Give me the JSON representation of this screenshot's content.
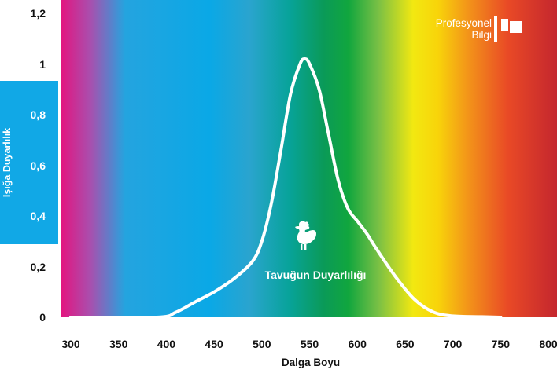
{
  "chart_data": {
    "type": "line",
    "title": "",
    "xlabel": "Dalga Boyu",
    "ylabel": "Işığa Duyarlılık",
    "xlim": [
      300,
      800
    ],
    "ylim": [
      0,
      1.2
    ],
    "x_ticks": [
      "300",
      "350",
      "400",
      "450",
      "500",
      "550",
      "600",
      "650",
      "700",
      "750",
      "800"
    ],
    "y_ticks": [
      "0",
      "0,2",
      "0,4",
      "0,6",
      "0,8",
      "1",
      "1,2"
    ],
    "grid": false,
    "series": [
      {
        "name": "Tavuğun Duyarlılığı",
        "color": "#ffffff",
        "x": [
          300,
          390,
          410,
          430,
          450,
          470,
          490,
          500,
          510,
          520,
          530,
          540,
          545,
          550,
          560,
          570,
          580,
          590,
          600,
          610,
          620,
          640,
          660,
          680,
          700,
          730,
          750
        ],
        "y": [
          0,
          0,
          0.02,
          0.06,
          0.1,
          0.15,
          0.22,
          0.3,
          0.45,
          0.66,
          0.88,
          1.0,
          1.02,
          1.0,
          0.9,
          0.72,
          0.54,
          0.43,
          0.38,
          0.33,
          0.27,
          0.16,
          0.07,
          0.02,
          0.005,
          0.002,
          0
        ]
      }
    ],
    "annotations": [
      "Tavuğun Duyarlılığı"
    ],
    "background": "visible light spectrum gradient (magenta to red)"
  },
  "brand": {
    "line1": "Profesyonel",
    "line2": "Bilgi",
    "icon": "flag-icon"
  },
  "annotation_icon": "rooster-icon",
  "colors": {
    "accent_blue": "#11a8e6",
    "curve": "#ffffff"
  }
}
